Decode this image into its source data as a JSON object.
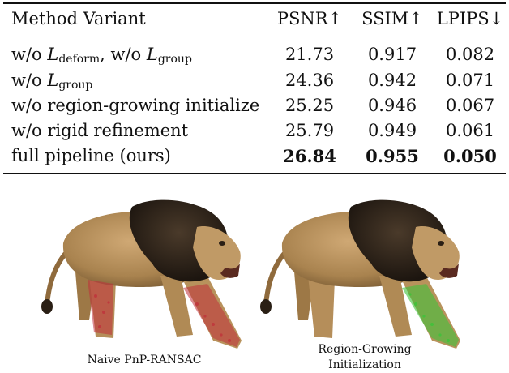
{
  "table": {
    "headers": [
      "Method Variant",
      "PSNR↑",
      "SSIM↑",
      "LPIPS↓"
    ],
    "rows": [
      {
        "pre1": "w/o ",
        "L1": "L",
        "sub1": "deform",
        "mid": ", w/o ",
        "L2": "L",
        "sub2": "group",
        "psnr": "21.73",
        "ssim": "0.917",
        "lpips": "0.082"
      },
      {
        "pre1": "w/o ",
        "L1": "L",
        "sub1": "group",
        "psnr": "24.36",
        "ssim": "0.942",
        "lpips": "0.071"
      },
      {
        "label": "w/o region-growing initialize",
        "psnr": "25.25",
        "ssim": "0.946",
        "lpips": "0.067"
      },
      {
        "label": "w/o rigid refinement",
        "psnr": "25.79",
        "ssim": "0.949",
        "lpips": "0.061"
      },
      {
        "label": "full pipeline (ours)",
        "psnr": "26.84",
        "ssim": "0.955",
        "lpips": "0.050"
      }
    ]
  },
  "figures": {
    "left_caption": "Naive PnP-RANSAC",
    "right_caption_line1": "Region-Growing",
    "right_caption_line2": "Initialization",
    "highlight_left": "#c0303a",
    "highlight_right": "#3fc23a",
    "lion_body": "#b8925c",
    "lion_mane": "#2b2118"
  }
}
